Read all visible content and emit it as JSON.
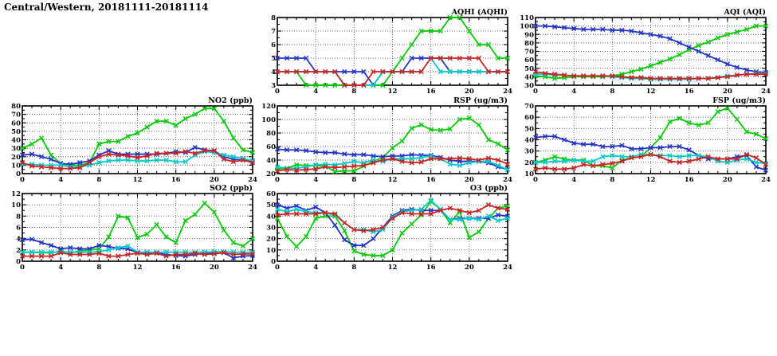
{
  "page_title": "Central/Western, 20181111-20181114",
  "colors": {
    "green": "#00cc00",
    "blue": "#2233cc",
    "red": "#cc2222",
    "cyan": "#00cccc",
    "axis": "#000000",
    "grid": "#606060"
  },
  "x_axis": {
    "min": 0,
    "max": 24,
    "major_step": 4,
    "minor_step": 1,
    "tick_labels": [
      "0",
      "4",
      "8",
      "12",
      "16",
      "20",
      "24"
    ]
  },
  "hours": [
    0,
    1,
    2,
    3,
    4,
    5,
    6,
    7,
    8,
    9,
    10,
    11,
    12,
    13,
    14,
    15,
    16,
    17,
    18,
    19,
    20,
    21,
    22,
    23,
    24
  ],
  "chart_data": [
    {
      "id": "aqhi",
      "type": "line",
      "title": "AQHI (AQHI)",
      "ylim": [
        3,
        8
      ],
      "ytick_step": 1,
      "grid": "dotted",
      "legend": "none",
      "series": [
        {
          "name": "green",
          "color": "green",
          "values": [
            4,
            4,
            4,
            3,
            3,
            3,
            3,
            3,
            3,
            3,
            3,
            3,
            4,
            5,
            6,
            7,
            7,
            7,
            8,
            8,
            7,
            6,
            6,
            5,
            5
          ]
        },
        {
          "name": "blue",
          "color": "blue",
          "values": [
            5,
            5,
            5,
            5,
            4,
            4,
            4,
            4,
            4,
            4,
            3,
            4,
            4,
            4,
            5,
            5,
            5,
            5,
            4,
            4,
            4,
            4,
            4,
            4,
            4
          ]
        },
        {
          "name": "cyan",
          "color": "cyan",
          "values": [
            4,
            4,
            4,
            4,
            4,
            4,
            4,
            3,
            3,
            3,
            3,
            4,
            4,
            4,
            4,
            4,
            5,
            4,
            4,
            4,
            4,
            4,
            4,
            4,
            4
          ]
        },
        {
          "name": "red",
          "color": "red",
          "values": [
            4,
            4,
            4,
            4,
            4,
            4,
            4,
            3,
            3,
            3,
            4,
            4,
            4,
            4,
            4,
            4,
            5,
            5,
            5,
            5,
            5,
            5,
            4,
            4,
            4
          ]
        }
      ]
    },
    {
      "id": "aqi",
      "type": "line",
      "title": "AQI (AQI)",
      "ylim": [
        30,
        110
      ],
      "ytick_step": 10,
      "grid": "dotted",
      "legend": "none",
      "series": [
        {
          "name": "green",
          "color": "green",
          "values": [
            41,
            40,
            38,
            39,
            40,
            40,
            40,
            40,
            41,
            43,
            46,
            49,
            53,
            57,
            61,
            66,
            72,
            77,
            81,
            86,
            90,
            93,
            96,
            100,
            100
          ]
        },
        {
          "name": "blue",
          "color": "blue",
          "values": [
            100,
            100,
            99,
            98,
            97,
            96,
            96,
            96,
            95,
            95,
            94,
            92,
            90,
            88,
            85,
            80,
            75,
            70,
            65,
            60,
            55,
            51,
            48,
            46,
            45
          ]
        },
        {
          "name": "cyan",
          "color": "cyan",
          "values": [
            43,
            43,
            42,
            42,
            41,
            41,
            41,
            41,
            40,
            39,
            38,
            38,
            37,
            37,
            37,
            37,
            37,
            38,
            38,
            39,
            41,
            42,
            43,
            44,
            44
          ]
        },
        {
          "name": "red",
          "color": "red",
          "values": [
            46,
            44,
            43,
            42,
            41,
            41,
            41,
            41,
            41,
            40,
            39,
            39,
            38,
            38,
            38,
            38,
            38,
            38,
            38,
            39,
            40,
            42,
            43,
            43,
            43
          ]
        }
      ]
    },
    {
      "id": "no2",
      "type": "line",
      "title": "NO2 (ppb)",
      "ylim": [
        0,
        80
      ],
      "ytick_step": 10,
      "grid": "dotted",
      "legend": "none",
      "series": [
        {
          "name": "green",
          "color": "green",
          "values": [
            30,
            35,
            42,
            22,
            12,
            10,
            10,
            13,
            35,
            38,
            38,
            44,
            48,
            55,
            62,
            62,
            57,
            65,
            70,
            77,
            77,
            62,
            42,
            28,
            25
          ]
        },
        {
          "name": "blue",
          "color": "blue",
          "values": [
            22,
            23,
            20,
            17,
            12,
            11,
            13,
            15,
            22,
            27,
            23,
            23,
            23,
            23,
            23,
            24,
            26,
            25,
            31,
            28,
            27,
            20,
            17,
            16,
            15
          ]
        },
        {
          "name": "cyan",
          "color": "cyan",
          "values": [
            11,
            11,
            10,
            10,
            10,
            8,
            8,
            10,
            13,
            15,
            16,
            16,
            15,
            15,
            16,
            16,
            14,
            14,
            22,
            26,
            25,
            22,
            20,
            18,
            15
          ]
        },
        {
          "name": "red",
          "color": "red",
          "values": [
            13,
            9,
            8,
            7,
            6,
            6,
            7,
            13,
            20,
            23,
            22,
            21,
            19,
            21,
            24,
            24,
            24,
            26,
            24,
            27,
            27,
            17,
            14,
            16,
            13
          ]
        }
      ]
    },
    {
      "id": "rsp",
      "type": "line",
      "title": "RSP (ug/m3)",
      "ylim": [
        20,
        120
      ],
      "ytick_step": 20,
      "grid": "dotted",
      "legend": "none",
      "series": [
        {
          "name": "green",
          "color": "green",
          "values": [
            27,
            28,
            33,
            32,
            32,
            31,
            23,
            24,
            24,
            31,
            38,
            44,
            58,
            68,
            87,
            92,
            85,
            84,
            86,
            100,
            102,
            92,
            70,
            64,
            55
          ]
        },
        {
          "name": "blue",
          "color": "blue",
          "values": [
            56,
            55,
            55,
            54,
            52,
            51,
            51,
            49,
            48,
            48,
            46,
            45,
            46,
            46,
            48,
            47,
            47,
            44,
            40,
            38,
            38,
            38,
            36,
            30,
            26
          ]
        },
        {
          "name": "cyan",
          "color": "cyan",
          "values": [
            30,
            28,
            28,
            30,
            33,
            34,
            33,
            35,
            38,
            36,
            40,
            38,
            42,
            42,
            42,
            44,
            46,
            42,
            34,
            32,
            36,
            38,
            38,
            32,
            26
          ]
        },
        {
          "name": "red",
          "color": "red",
          "values": [
            24,
            26,
            25,
            26,
            27,
            30,
            29,
            30,
            31,
            32,
            36,
            40,
            42,
            38,
            36,
            37,
            42,
            42,
            42,
            43,
            42,
            40,
            43,
            40,
            34
          ]
        }
      ]
    },
    {
      "id": "fsp",
      "type": "line",
      "title": "FSP (ug/m3)",
      "ylim": [
        10,
        70
      ],
      "ytick_step": 10,
      "grid": "dotted",
      "legend": "none",
      "series": [
        {
          "name": "green",
          "color": "green",
          "values": [
            20,
            22,
            25,
            23,
            22,
            22,
            17,
            17,
            15,
            22,
            24,
            25,
            33,
            42,
            56,
            59,
            55,
            53,
            55,
            65,
            68,
            58,
            47,
            45,
            41
          ]
        },
        {
          "name": "blue",
          "color": "blue",
          "values": [
            42,
            43,
            43,
            40,
            37,
            36,
            36,
            34,
            34,
            35,
            32,
            32,
            33,
            33,
            34,
            34,
            31,
            26,
            23,
            23,
            23,
            25,
            26,
            16,
            13
          ]
        },
        {
          "name": "cyan",
          "color": "cyan",
          "values": [
            20,
            20,
            21,
            21,
            22,
            21,
            21,
            25,
            26,
            25,
            25,
            27,
            27,
            26,
            26,
            25,
            26,
            26,
            25,
            21,
            20,
            22,
            23,
            20,
            19
          ]
        },
        {
          "name": "red",
          "color": "red",
          "values": [
            14,
            15,
            14,
            14,
            15,
            18,
            17,
            18,
            19,
            21,
            24,
            25,
            27,
            25,
            21,
            20,
            21,
            23,
            25,
            23,
            23,
            23,
            27,
            24,
            18
          ]
        }
      ]
    },
    {
      "id": "so2",
      "type": "line",
      "title": "SO2 (ppb)",
      "ylim": [
        0,
        12
      ],
      "ytick_step": 2,
      "grid": "dotted",
      "legend": "none",
      "series": [
        {
          "name": "green",
          "color": "green",
          "values": [
            1.6,
            1.6,
            1.5,
            1.5,
            1.8,
            1.5,
            1.8,
            2.0,
            2.2,
            4.3,
            8.0,
            7.7,
            4.2,
            4.8,
            6.5,
            4.3,
            3.3,
            7.2,
            8.3,
            10.3,
            8.7,
            5.5,
            3.3,
            2.7,
            4.0
          ]
        },
        {
          "name": "blue",
          "color": "blue",
          "values": [
            3.8,
            3.9,
            3.3,
            2.8,
            2.2,
            2.4,
            2.2,
            2.2,
            2.8,
            2.6,
            2.3,
            2.2,
            1.5,
            1.4,
            1.5,
            1.2,
            1.0,
            0.9,
            1.2,
            1.4,
            1.4,
            1.5,
            0.6,
            0.9,
            1.0
          ]
        },
        {
          "name": "cyan",
          "color": "cyan",
          "values": [
            1.6,
            1.6,
            1.6,
            1.6,
            1.6,
            1.6,
            1.6,
            1.6,
            1.7,
            2.0,
            2.4,
            2.7,
            1.6,
            1.6,
            1.6,
            1.6,
            1.6,
            1.6,
            1.6,
            1.6,
            1.7,
            1.7,
            1.6,
            1.6,
            1.6
          ]
        },
        {
          "name": "red",
          "color": "red",
          "values": [
            0.9,
            0.9,
            0.9,
            0.9,
            1.5,
            1.2,
            1.2,
            1.2,
            1.4,
            0.9,
            0.9,
            1.2,
            1.4,
            1.2,
            1.4,
            0.9,
            1.2,
            1.2,
            1.4,
            1.2,
            1.3,
            1.5,
            1.2,
            1.3,
            1.3
          ]
        }
      ]
    },
    {
      "id": "o3",
      "type": "line",
      "title": "O3 (ppb)",
      "ylim": [
        0,
        60
      ],
      "ytick_step": 10,
      "grid": "dotted",
      "legend": "none",
      "series": [
        {
          "name": "green",
          "color": "green",
          "values": [
            38,
            22,
            13,
            22,
            38,
            40,
            40,
            27,
            9,
            6,
            5,
            5,
            10,
            25,
            33,
            41,
            53,
            46,
            34,
            44,
            21,
            26,
            38,
            47,
            49
          ]
        },
        {
          "name": "blue",
          "color": "blue",
          "values": [
            50,
            47,
            49,
            45,
            48,
            43,
            32,
            19,
            14,
            14,
            20,
            30,
            40,
            45,
            46,
            45,
            45,
            45,
            37,
            38,
            38,
            38,
            38,
            41,
            40
          ]
        },
        {
          "name": "cyan",
          "color": "cyan",
          "values": [
            46,
            44,
            46,
            44,
            43,
            43,
            41,
            34,
            28,
            28,
            26,
            28,
            39,
            44,
            45,
            46,
            54,
            46,
            37,
            37,
            38,
            37,
            40,
            36,
            38
          ]
        },
        {
          "name": "red",
          "color": "red",
          "values": [
            41,
            42,
            42,
            42,
            42,
            43,
            42,
            34,
            28,
            27,
            28,
            30,
            38,
            43,
            42,
            42,
            42,
            45,
            47,
            45,
            43,
            45,
            50,
            47,
            46
          ]
        }
      ]
    }
  ]
}
